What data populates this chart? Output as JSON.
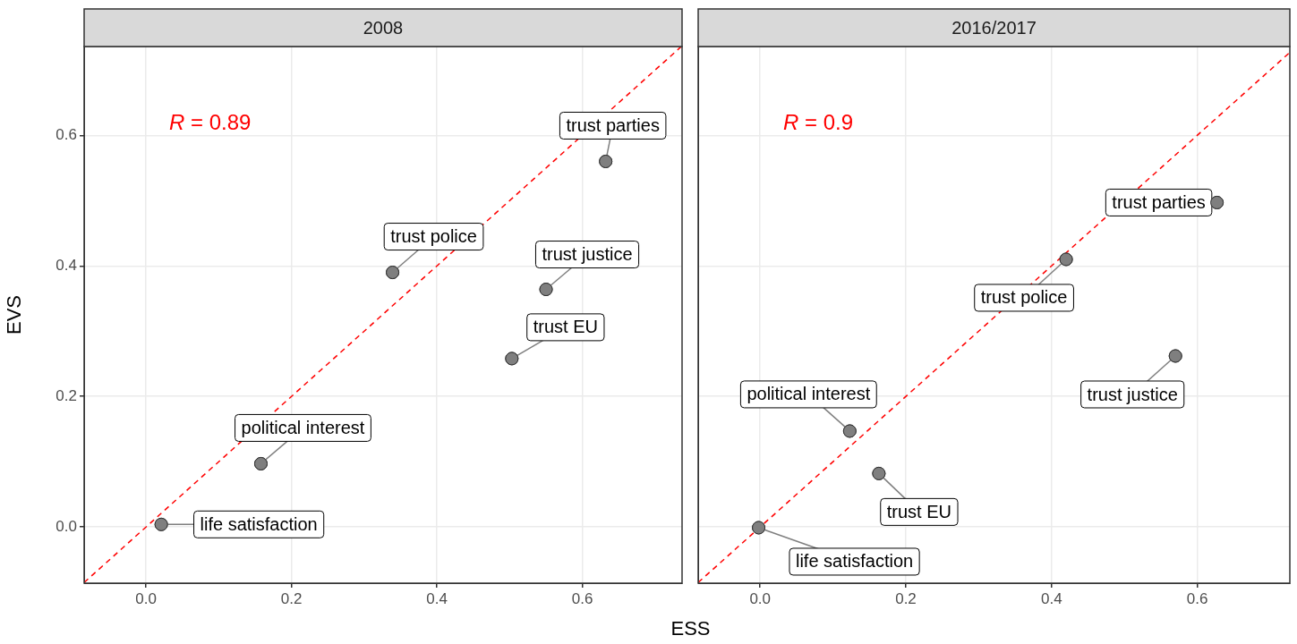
{
  "chart_data": [
    {
      "type": "scatter",
      "title": "2008",
      "xlabel": "ESS",
      "ylabel": "EVS",
      "annotations": [
        "R = 0.89"
      ],
      "grid": true,
      "xlim": [
        -0.085,
        0.737
      ],
      "ylim": [
        -0.086,
        0.736
      ],
      "xticks": [
        {
          "value": 0,
          "label": "0.0"
        },
        0.2,
        0.4,
        0.6
      ],
      "yticks": [
        {
          "value": 0,
          "label": "0.0"
        },
        0.2,
        0.4,
        0.6
      ],
      "series": [
        {
          "marker": "circle",
          "color": "#7f7f7f",
          "x": [
            0.021,
            0.158,
            0.339,
            0.503,
            0.55,
            0.632
          ],
          "values": [
            0.004,
            0.097,
            0.39,
            0.258,
            0.364,
            0.56
          ],
          "value_labels": [
            "life satisfaction",
            "political interest",
            "trust police",
            "trust EU",
            "trust justice",
            "trust parties"
          ]
        },
        {
          "type": "line",
          "marker": "none",
          "color": "#ff0000",
          "line_style": "dashed",
          "x": [
            -0.085,
            0.736
          ],
          "values": [
            -0.085,
            0.736
          ]
        }
      ]
    },
    {
      "type": "scatter",
      "title": "2016/2017",
      "annotations": [
        "R = 0.9"
      ],
      "grid": true,
      "tick_labels": "x",
      "xlim": [
        -0.085,
        0.727
      ],
      "ylim": [
        -0.086,
        0.736
      ],
      "xticks": [
        {
          "value": 0,
          "label": "0.0"
        },
        0.2,
        0.4,
        0.6
      ],
      "yticks": [
        0,
        0.2,
        0.4,
        0.6
      ],
      "series": [
        {
          "marker": "circle",
          "color": "#7f7f7f",
          "x": [
            -0.002,
            0.123,
            0.163,
            0.42,
            0.57,
            0.627
          ],
          "values": [
            -0.001,
            0.147,
            0.082,
            0.41,
            0.262,
            0.497
          ],
          "value_labels": [
            "life satisfaction",
            "political interest",
            "trust EU",
            "trust police",
            "trust justice",
            "trust parties"
          ]
        },
        {
          "type": "line",
          "marker": "none",
          "color": "#ff0000",
          "line_style": "dashed",
          "x": [
            -0.085,
            0.727
          ],
          "values": [
            -0.085,
            0.727
          ]
        }
      ]
    }
  ]
}
